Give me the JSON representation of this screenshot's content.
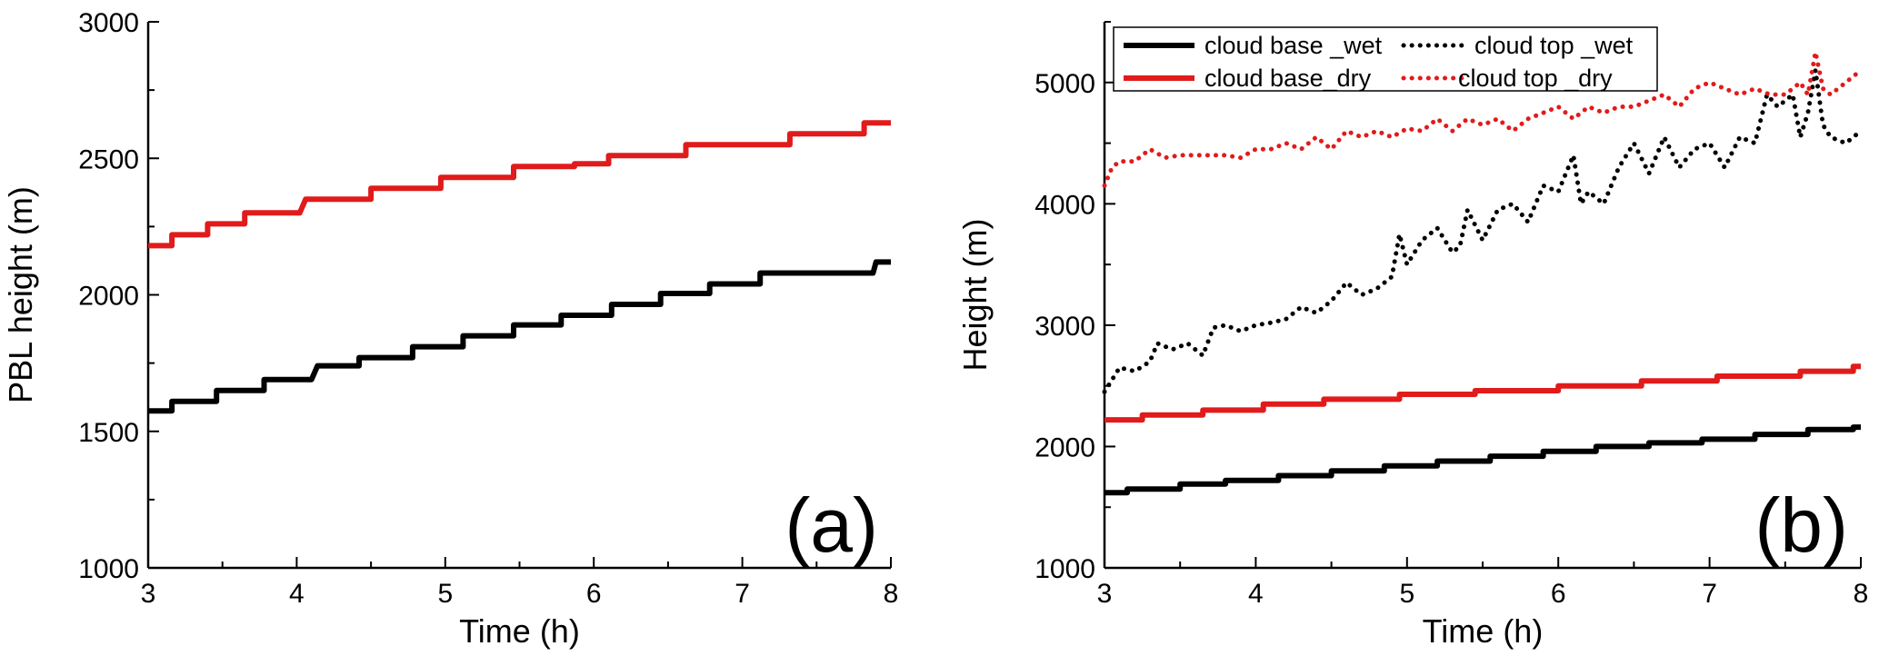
{
  "chart_data": [
    {
      "type": "line",
      "panel_label": "(a)",
      "xlabel": "Time (h)",
      "ylabel": "PBL  height (m)",
      "xlim": [
        3,
        8
      ],
      "ylim": [
        1000,
        3000
      ],
      "xticks": [
        3,
        4,
        5,
        6,
        7,
        8
      ],
      "yticks": [
        1000,
        1500,
        2000,
        2500,
        3000
      ],
      "grid": false,
      "legend": null,
      "series": [
        {
          "color": "#e11b1b",
          "style": "solid",
          "x": [
            3.0,
            3.16,
            3.16,
            3.4,
            3.4,
            3.65,
            3.65,
            4.02,
            4.06,
            4.5,
            4.5,
            4.97,
            4.97,
            5.46,
            5.46,
            5.87,
            5.87,
            6.1,
            6.1,
            6.62,
            6.62,
            7.32,
            7.32,
            7.82,
            7.82,
            8.0
          ],
          "y": [
            2180,
            2180,
            2220,
            2220,
            2260,
            2260,
            2300,
            2300,
            2350,
            2350,
            2390,
            2390,
            2430,
            2430,
            2470,
            2470,
            2480,
            2480,
            2510,
            2510,
            2550,
            2550,
            2590,
            2590,
            2630,
            2630
          ]
        },
        {
          "color": "#000000",
          "style": "solid",
          "x": [
            3.0,
            3.16,
            3.16,
            3.46,
            3.46,
            3.78,
            3.78,
            4.1,
            4.14,
            4.42,
            4.42,
            4.78,
            4.78,
            5.12,
            5.12,
            5.46,
            5.46,
            5.78,
            5.78,
            6.12,
            6.12,
            6.45,
            6.45,
            6.78,
            6.78,
            7.12,
            7.12,
            7.44,
            7.44,
            7.88,
            7.9,
            8.0
          ],
          "y": [
            1575,
            1575,
            1610,
            1610,
            1650,
            1650,
            1690,
            1690,
            1740,
            1740,
            1770,
            1770,
            1810,
            1810,
            1850,
            1850,
            1890,
            1890,
            1925,
            1925,
            1965,
            1965,
            2005,
            2005,
            2040,
            2040,
            2080,
            2080,
            2080,
            2080,
            2120,
            2120
          ]
        }
      ]
    },
    {
      "type": "line",
      "panel_label": "(b)",
      "xlabel": "Time (h)",
      "ylabel": "Height (m)",
      "xlim": [
        3,
        8
      ],
      "ylim": [
        1000,
        5500
      ],
      "xticks": [
        3,
        4,
        5,
        6,
        7,
        8
      ],
      "yticks": [
        1000,
        2000,
        3000,
        4000,
        5000
      ],
      "grid": false,
      "legend_position": "top",
      "series": [
        {
          "name": "cloud base _wet",
          "color": "#000000",
          "style": "solid",
          "x": [
            3.0,
            3.15,
            3.15,
            3.5,
            3.5,
            3.8,
            3.8,
            4.15,
            4.15,
            4.5,
            4.5,
            4.85,
            4.85,
            5.2,
            5.2,
            5.55,
            5.55,
            5.9,
            5.9,
            6.25,
            6.25,
            6.6,
            6.6,
            6.95,
            6.95,
            7.3,
            7.3,
            7.65,
            7.65,
            7.95,
            7.95,
            8.0
          ],
          "y": [
            1620,
            1620,
            1650,
            1650,
            1690,
            1690,
            1720,
            1720,
            1760,
            1760,
            1800,
            1800,
            1840,
            1840,
            1880,
            1880,
            1920,
            1920,
            1960,
            1960,
            2000,
            2000,
            2030,
            2030,
            2060,
            2060,
            2100,
            2100,
            2140,
            2140,
            2160,
            2160
          ]
        },
        {
          "name": "cloud top _wet",
          "color": "#000000",
          "style": "dotted",
          "x": [
            3.0,
            3.05,
            3.1,
            3.2,
            3.3,
            3.35,
            3.45,
            3.55,
            3.65,
            3.72,
            3.8,
            3.9,
            4.0,
            4.1,
            4.2,
            4.3,
            4.4,
            4.5,
            4.6,
            4.7,
            4.8,
            4.9,
            4.95,
            5.0,
            5.05,
            5.1,
            5.2,
            5.3,
            5.35,
            5.4,
            5.5,
            5.6,
            5.7,
            5.8,
            5.9,
            6.0,
            6.1,
            6.15,
            6.2,
            6.3,
            6.4,
            6.5,
            6.6,
            6.7,
            6.8,
            6.9,
            7.0,
            7.1,
            7.2,
            7.3,
            7.38,
            7.45,
            7.55,
            7.6,
            7.65,
            7.7,
            7.75,
            7.8,
            7.9,
            8.0
          ],
          "y": [
            2450,
            2550,
            2650,
            2620,
            2700,
            2850,
            2800,
            2850,
            2750,
            2980,
            3000,
            2950,
            3000,
            3020,
            3050,
            3150,
            3100,
            3200,
            3350,
            3250,
            3300,
            3400,
            3750,
            3500,
            3600,
            3700,
            3800,
            3600,
            3650,
            3950,
            3700,
            3950,
            4000,
            3850,
            4150,
            4100,
            4400,
            4000,
            4100,
            4000,
            4300,
            4500,
            4250,
            4550,
            4300,
            4450,
            4500,
            4300,
            4550,
            4500,
            4900,
            4800,
            4900,
            4550,
            4750,
            5100,
            4650,
            4550,
            4500,
            4600
          ]
        },
        {
          "name": "cloud base_dry",
          "color": "#e11b1b",
          "style": "solid",
          "x": [
            3.0,
            3.25,
            3.25,
            3.65,
            3.65,
            4.05,
            4.05,
            4.45,
            4.45,
            4.95,
            4.95,
            5.45,
            5.45,
            6.0,
            6.0,
            6.55,
            6.55,
            7.05,
            7.05,
            7.6,
            7.6,
            7.95,
            7.95,
            8.0
          ],
          "y": [
            2220,
            2220,
            2260,
            2260,
            2300,
            2300,
            2350,
            2350,
            2390,
            2390,
            2430,
            2430,
            2460,
            2460,
            2500,
            2500,
            2540,
            2540,
            2580,
            2580,
            2620,
            2620,
            2660,
            2660
          ]
        },
        {
          "name": "cloud top _dry",
          "color": "#e11b1b",
          "style": "dotted",
          "x": [
            3.0,
            3.05,
            3.1,
            3.2,
            3.3,
            3.4,
            3.5,
            3.6,
            3.7,
            3.8,
            3.9,
            4.0,
            4.1,
            4.2,
            4.3,
            4.4,
            4.5,
            4.6,
            4.7,
            4.8,
            4.9,
            5.0,
            5.1,
            5.2,
            5.3,
            5.4,
            5.5,
            5.6,
            5.7,
            5.8,
            5.9,
            6.0,
            6.1,
            6.2,
            6.3,
            6.4,
            6.5,
            6.6,
            6.7,
            6.8,
            6.9,
            7.0,
            7.1,
            7.2,
            7.3,
            7.4,
            7.5,
            7.6,
            7.65,
            7.7,
            7.75,
            7.8,
            7.9,
            8.0
          ],
          "y": [
            4150,
            4300,
            4350,
            4350,
            4450,
            4380,
            4400,
            4400,
            4400,
            4400,
            4380,
            4450,
            4450,
            4500,
            4450,
            4550,
            4450,
            4600,
            4550,
            4600,
            4550,
            4620,
            4600,
            4700,
            4600,
            4700,
            4650,
            4700,
            4600,
            4700,
            4750,
            4800,
            4700,
            4800,
            4750,
            4800,
            4800,
            4850,
            4900,
            4800,
            4950,
            5000,
            4950,
            4900,
            4950,
            4900,
            4900,
            5000,
            4900,
            5250,
            4950,
            4900,
            5000,
            5100
          ]
        }
      ]
    }
  ]
}
